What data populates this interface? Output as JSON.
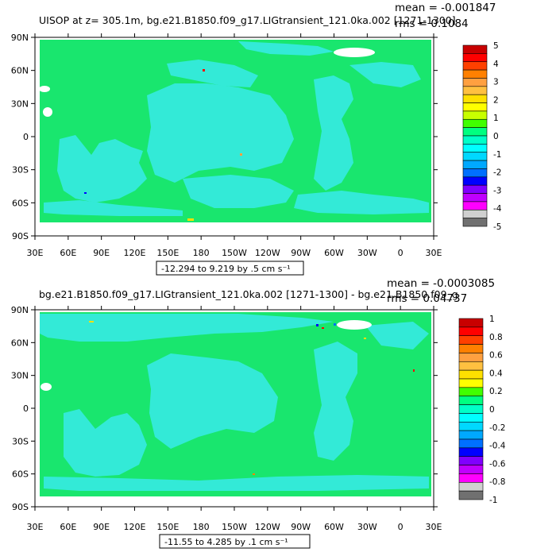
{
  "chart_data": [
    {
      "type": "heatmap",
      "title": "UISOP at z= 305.1m, bg.e21.B1850.f09_g17.LIGtransient_121.0ka.002  [1271-1300]",
      "mean_label": "mean = -0.001847",
      "rms_label": "rms = 0.1084",
      "range_label": "-12.294 to 9.219 by .5 cm s⁻¹",
      "lon_ticks": [
        "30E",
        "60E",
        "90E",
        "120E",
        "150E",
        "180",
        "150W",
        "120W",
        "90W",
        "60W",
        "30W",
        "0",
        "30E"
      ],
      "lat_ticks": [
        "90N",
        "60N",
        "30N",
        "0",
        "30S",
        "60S",
        "90S"
      ],
      "colorbar_labels": [
        "5",
        "4",
        "3",
        "2",
        "1",
        "0",
        "-1",
        "-2",
        "-3",
        "-4",
        "-5"
      ],
      "colorbar_colors": [
        "#c80000",
        "#ff0000",
        "#ff4000",
        "#ff8000",
        "#ffa040",
        "#ffc040",
        "#ffe000",
        "#ffff00",
        "#c8ff00",
        "#40ff00",
        "#00ff80",
        "#00ffc8",
        "#00ffff",
        "#00d8ff",
        "#00a8ff",
        "#0070ff",
        "#0000ff",
        "#8000ff",
        "#c000ff",
        "#ff00ff",
        "#d0d0d0",
        "#707070"
      ]
    },
    {
      "type": "heatmap",
      "title": "bg.e21.B1850.f09_g17.LIGtransient_121.0ka.002  [1271-1300] - bg.e21.B1850.f09_g",
      "mean_label": "mean = -0.0003085",
      "rms_label": "rms = 0.04737",
      "range_label": "-11.55 to 4.285 by .1 cm s⁻¹",
      "lon_ticks": [
        "30E",
        "60E",
        "90E",
        "120E",
        "150E",
        "180",
        "150W",
        "120W",
        "90W",
        "60W",
        "30W",
        "0",
        "30E"
      ],
      "lat_ticks": [
        "90N",
        "60N",
        "30N",
        "0",
        "30S",
        "60S",
        "90S"
      ],
      "colorbar_labels": [
        "1",
        "0.8",
        "0.6",
        "0.4",
        "0.2",
        "0",
        "-0.2",
        "-0.4",
        "-0.6",
        "-0.8",
        "-1"
      ],
      "colorbar_colors": [
        "#c80000",
        "#ff0000",
        "#ff4000",
        "#ff8000",
        "#ffa040",
        "#ffc040",
        "#ffe000",
        "#ffff00",
        "#40ff00",
        "#00ff80",
        "#00ffc8",
        "#00ffff",
        "#00d8ff",
        "#00a8ff",
        "#0070ff",
        "#0000ff",
        "#8000ff",
        "#c000ff",
        "#ff00ff",
        "#d0d0d0",
        "#707070"
      ]
    }
  ],
  "colors": {
    "land": "#19e66e",
    "ocean": "#33ead7",
    "ocean_light": "#19e6c3",
    "ice": "#ffffff"
  }
}
